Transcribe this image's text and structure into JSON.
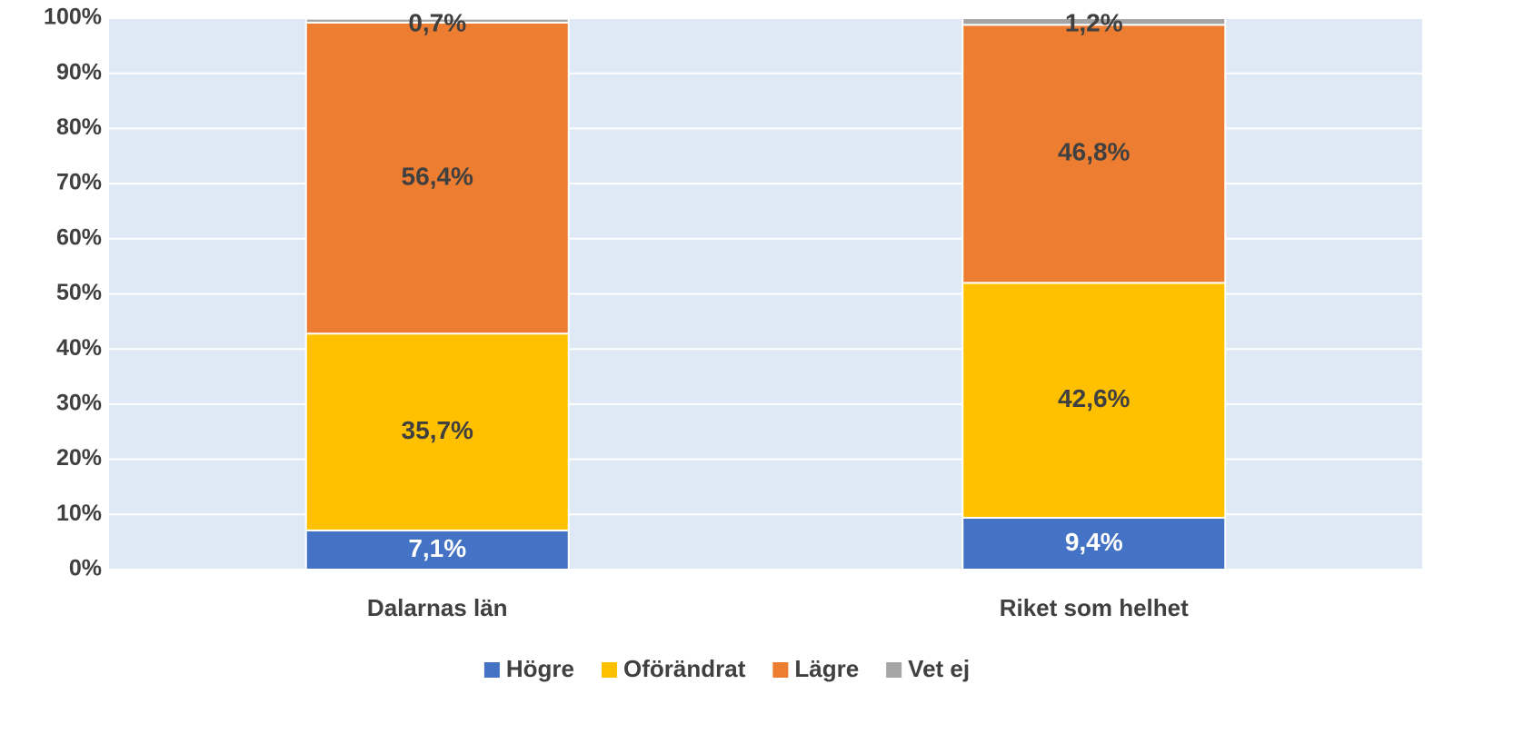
{
  "chart_data": {
    "type": "stacked_bar",
    "categories": [
      "Dalarnas län",
      "Riket som helhet"
    ],
    "series": [
      {
        "name": "Högre",
        "color": "#4472c4",
        "label_color": "#ffffff",
        "values": [
          7.1,
          9.4
        ],
        "value_labels": [
          "7,1%",
          "9,4%"
        ]
      },
      {
        "name": "Oförändrat",
        "color": "#ffc000",
        "label_color": "#404040",
        "values": [
          35.7,
          42.6
        ],
        "value_labels": [
          "35,7%",
          "42,6%"
        ]
      },
      {
        "name": "Lägre",
        "color": "#ed7d31",
        "label_color": "#404040",
        "values": [
          56.4,
          46.8
        ],
        "value_labels": [
          "56,4%",
          "46,8%"
        ]
      },
      {
        "name": "Vet ej",
        "color": "#a5a5a5",
        "label_color": "#404040",
        "values": [
          0.7,
          1.2
        ],
        "value_labels": [
          "0,7%",
          "1,2%"
        ]
      }
    ],
    "ylim": [
      0,
      100
    ],
    "yticks": [
      {
        "value": 0,
        "label": "0%"
      },
      {
        "value": 10,
        "label": "10%"
      },
      {
        "value": 20,
        "label": "20%"
      },
      {
        "value": 30,
        "label": "30%"
      },
      {
        "value": 40,
        "label": "40%"
      },
      {
        "value": 50,
        "label": "50%"
      },
      {
        "value": 60,
        "label": "60%"
      },
      {
        "value": 70,
        "label": "70%"
      },
      {
        "value": 80,
        "label": "80%"
      },
      {
        "value": 90,
        "label": "90%"
      },
      {
        "value": 100,
        "label": "100%"
      }
    ],
    "grid": true,
    "plot_background": "#dee9f5",
    "legend": "bottom"
  }
}
